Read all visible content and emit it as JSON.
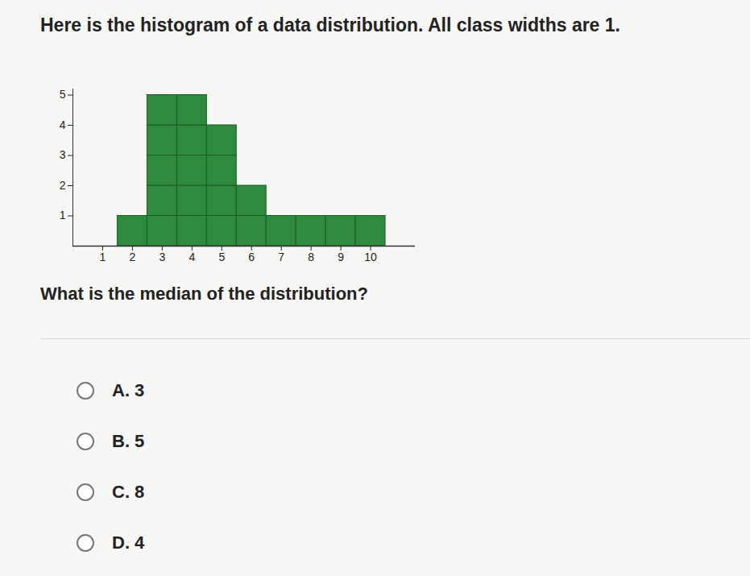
{
  "heading": "Here is the histogram of a data distribution. All class widths are 1.",
  "chart_data": {
    "type": "histogram",
    "bins": [
      1.5,
      2.5,
      3.5,
      4.5,
      5.5,
      6.5,
      7.5,
      8.5,
      9.5,
      10.5
    ],
    "counts": [
      1,
      5,
      5,
      4,
      2,
      1,
      1,
      1,
      1
    ],
    "color": "#2e8b3e",
    "xlim": [
      0,
      11.5
    ],
    "xticks": [
      1,
      2,
      3,
      4,
      5,
      6,
      7,
      8,
      9,
      10
    ],
    "ylim": [
      0,
      5.2
    ],
    "yticks": [
      1,
      2,
      3,
      4,
      5
    ],
    "grid": false
  },
  "question": "What is the median of the distribution?",
  "options": [
    "A. 3",
    "B. 5",
    "C. 8",
    "D. 4"
  ]
}
